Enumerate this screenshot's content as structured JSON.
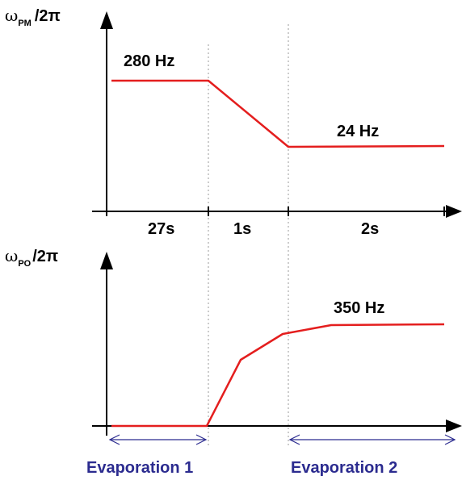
{
  "colors": {
    "curve": "#e41e1e",
    "axis": "#000000",
    "divider": "#999999",
    "evaporation": "#2b2b8f"
  },
  "top_panel": {
    "ylabel": {
      "symbol": "ω",
      "subscript": "PM",
      "suffix": "/2π"
    },
    "label_start": "280 Hz",
    "label_end": "24 Hz",
    "segments": [
      "27s",
      "1s",
      "2s"
    ]
  },
  "bottom_panel": {
    "ylabel": {
      "symbol": "ω",
      "subscript": "PO",
      "suffix": "/2π"
    },
    "label_end": "350 Hz"
  },
  "evaporation": [
    "Evaporation 1",
    "Evaporation 2"
  ]
}
